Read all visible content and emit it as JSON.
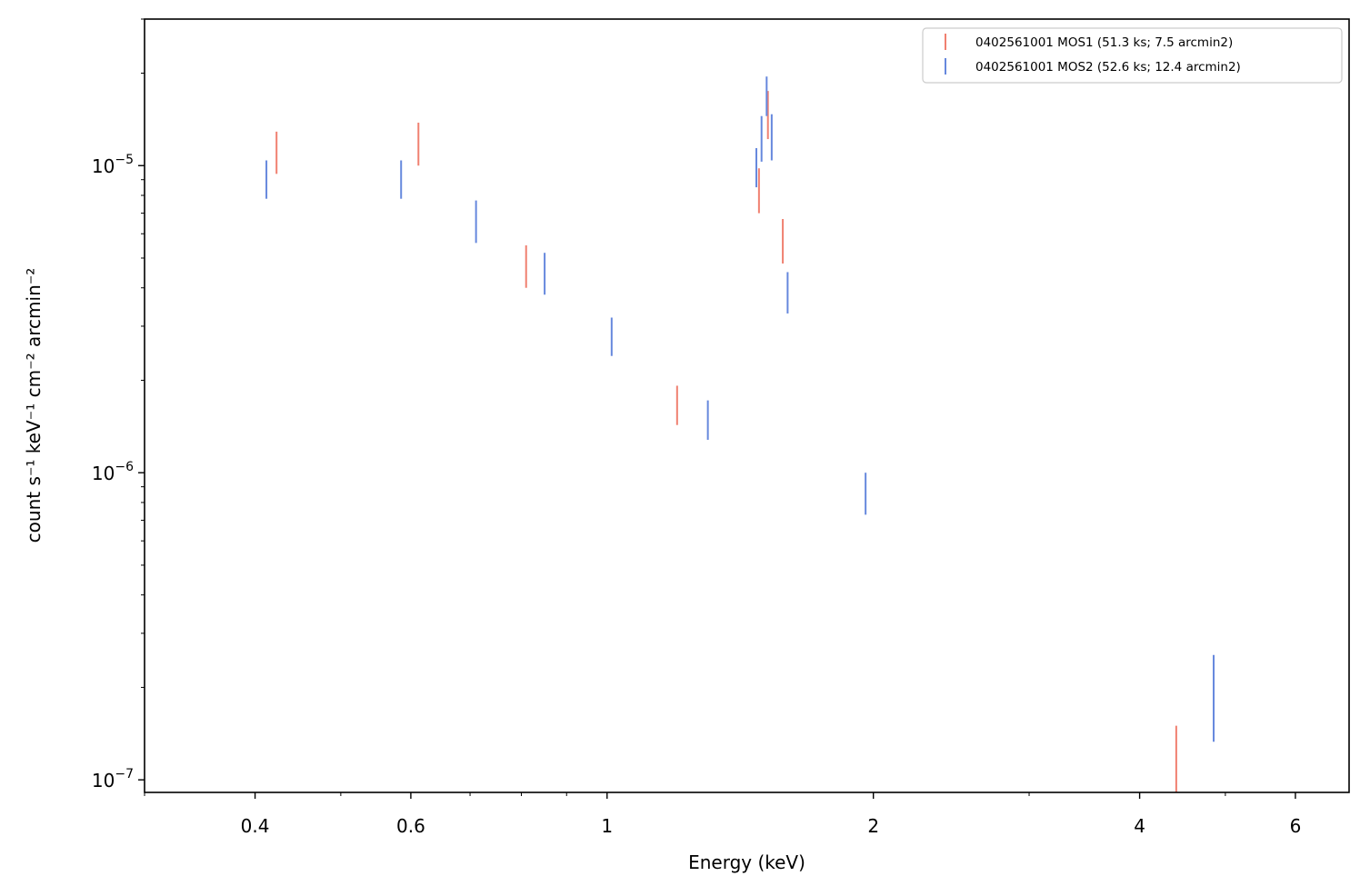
{
  "chart_data": {
    "type": "scatter",
    "title": "",
    "xlabel": "Energy (keV)",
    "ylabel": "count s⁻¹ keV⁻¹ cm⁻² arcmin⁻²",
    "xscale": "log",
    "yscale": "log",
    "xlim": [
      0.3,
      6.9
    ],
    "ylim": [
      9.1e-08,
      3e-05
    ],
    "x_major_ticks": [
      {
        "value": 0.4,
        "label": "0.4"
      },
      {
        "value": 0.6,
        "label": "0.6"
      },
      {
        "value": 1,
        "label": "1"
      },
      {
        "value": 2,
        "label": "2"
      },
      {
        "value": 4,
        "label": "4"
      },
      {
        "value": 6,
        "label": "6"
      }
    ],
    "x_minor_ticks": [
      0.3,
      0.5,
      0.7,
      0.8,
      0.9,
      3,
      5
    ],
    "y_major_ticks": [
      {
        "value": 1e-07,
        "label_base": "10",
        "label_exp": "−7"
      },
      {
        "value": 1e-06,
        "label_base": "10",
        "label_exp": "−6"
      },
      {
        "value": 1e-05,
        "label_base": "10",
        "label_exp": "−5"
      }
    ],
    "y_minor_ticks": [
      2e-07,
      3e-07,
      4e-07,
      5e-07,
      6e-07,
      7e-07,
      8e-07,
      9e-07,
      2e-06,
      3e-06,
      4e-06,
      5e-06,
      6e-06,
      7e-06,
      8e-06,
      9e-06,
      2e-05,
      3e-05
    ],
    "legend_position": "top-right",
    "series": [
      {
        "name": "0402561001 MOS1 (51.3 ks; 7.5 arcmin2)",
        "color": "#f08070",
        "points": [
          {
            "x": 0.423,
            "ylow": 9.4e-06,
            "yhigh": 1.29e-05
          },
          {
            "x": 0.612,
            "ylow": 1e-05,
            "yhigh": 1.38e-05
          },
          {
            "x": 0.81,
            "ylow": 4e-06,
            "yhigh": 5.5e-06
          },
          {
            "x": 1.2,
            "ylow": 1.43e-06,
            "yhigh": 1.92e-06
          },
          {
            "x": 1.485,
            "ylow": 7e-06,
            "yhigh": 9.8e-06
          },
          {
            "x": 1.52,
            "ylow": 1.22e-05,
            "yhigh": 1.75e-05
          },
          {
            "x": 1.58,
            "ylow": 4.8e-06,
            "yhigh": 6.7e-06
          },
          {
            "x": 4.4,
            "ylow": 9.1e-08,
            "yhigh": 1.5e-07
          }
        ]
      },
      {
        "name": "0402561001 MOS2 (52.6 ks; 12.4 arcmin2)",
        "color": "#6688dd",
        "points": [
          {
            "x": 0.412,
            "ylow": 7.8e-06,
            "yhigh": 1.04e-05
          },
          {
            "x": 0.585,
            "ylow": 7.8e-06,
            "yhigh": 1.04e-05
          },
          {
            "x": 0.711,
            "ylow": 5.6e-06,
            "yhigh": 7.7e-06
          },
          {
            "x": 0.85,
            "ylow": 3.8e-06,
            "yhigh": 5.2e-06
          },
          {
            "x": 1.012,
            "ylow": 2.4e-06,
            "yhigh": 3.2e-06
          },
          {
            "x": 1.3,
            "ylow": 1.28e-06,
            "yhigh": 1.72e-06
          },
          {
            "x": 1.475,
            "ylow": 8.5e-06,
            "yhigh": 1.14e-05
          },
          {
            "x": 1.495,
            "ylow": 1.03e-05,
            "yhigh": 1.45e-05
          },
          {
            "x": 1.515,
            "ylow": 1.45e-05,
            "yhigh": 1.95e-05
          },
          {
            "x": 1.535,
            "ylow": 1.04e-05,
            "yhigh": 1.47e-05
          },
          {
            "x": 1.6,
            "ylow": 3.3e-06,
            "yhigh": 4.5e-06
          },
          {
            "x": 1.96,
            "ylow": 7.3e-07,
            "yhigh": 1e-06
          },
          {
            "x": 4.85,
            "ylow": 1.33e-07,
            "yhigh": 2.55e-07
          }
        ]
      }
    ]
  }
}
